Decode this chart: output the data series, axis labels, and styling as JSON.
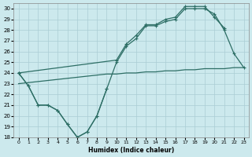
{
  "xlabel": "Humidex (Indice chaleur)",
  "bg_color": "#cce9ed",
  "line_color": "#2d6e65",
  "grid_color": "#aacdd4",
  "xlim": [
    -0.5,
    23.5
  ],
  "ylim": [
    18,
    30.5
  ],
  "xticks": [
    0,
    1,
    2,
    3,
    4,
    5,
    6,
    7,
    8,
    9,
    10,
    11,
    12,
    13,
    14,
    15,
    16,
    17,
    18,
    19,
    20,
    21,
    22,
    23
  ],
  "yticks": [
    18,
    19,
    20,
    21,
    22,
    23,
    24,
    25,
    26,
    27,
    28,
    29,
    30
  ],
  "line_v_x": [
    0,
    1,
    2,
    3,
    4,
    5,
    6,
    7,
    8,
    9
  ],
  "line_v_y": [
    24,
    22.8,
    21.0,
    21.0,
    20.5,
    19.2,
    18.0,
    18.5,
    20.0,
    22.5
  ],
  "line_mid_x": [
    0,
    1,
    2,
    3,
    4,
    5,
    6,
    7,
    8,
    9,
    10,
    11,
    12,
    13,
    14,
    15,
    16,
    17,
    18,
    19,
    20,
    21,
    22,
    23
  ],
  "line_mid_y": [
    24,
    22.8,
    21.0,
    21.0,
    20.5,
    19.2,
    18.0,
    18.5,
    20.0,
    22.5,
    25.0,
    26.5,
    27.2,
    28.4,
    28.4,
    28.8,
    29.0,
    30.0,
    30.0,
    30.0,
    29.5,
    28.0,
    25.8,
    24.5
  ],
  "line_top_x": [
    0,
    10,
    11,
    12,
    13,
    14,
    15,
    16,
    17,
    18,
    19,
    20,
    21
  ],
  "line_top_y": [
    24,
    25.2,
    26.7,
    27.5,
    28.5,
    28.5,
    29.0,
    29.2,
    30.2,
    30.2,
    30.2,
    29.2,
    28.2
  ],
  "line_flat_x": [
    0,
    1,
    2,
    3,
    4,
    5,
    6,
    7,
    8,
    9,
    10,
    11,
    12,
    13,
    14,
    15,
    16,
    17,
    18,
    19,
    20,
    21,
    22,
    23
  ],
  "line_flat_y": [
    23.0,
    23.1,
    23.2,
    23.3,
    23.4,
    23.5,
    23.6,
    23.7,
    23.8,
    23.9,
    23.9,
    24.0,
    24.0,
    24.1,
    24.1,
    24.2,
    24.2,
    24.3,
    24.3,
    24.4,
    24.4,
    24.4,
    24.5,
    24.5
  ]
}
